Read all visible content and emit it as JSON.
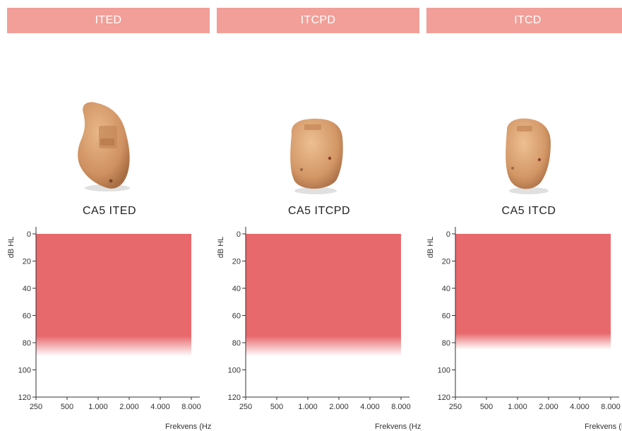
{
  "colors": {
    "header_bg": "#f19f98",
    "fit_range": "#e8696c",
    "device_skin": "#d9a070",
    "axis": "#333333"
  },
  "columns": [
    {
      "header": "ITED",
      "model": "CA5 ITED",
      "device_image": "ited-hearing-aid-shell"
    },
    {
      "header": "ITCPD",
      "model": "CA5 ITCPD",
      "device_image": "itcpd-hearing-aid-shell"
    },
    {
      "header": "ITCD",
      "model": "CA5 ITCD",
      "device_image": "itcd-hearing-aid-shell"
    }
  ],
  "chart_data": [
    {
      "type": "area",
      "xlabel": "Frekvens (Hz)",
      "ylabel": "dB HL",
      "x_tick_labels": [
        "250",
        "500",
        "1.000",
        "2.000",
        "4.000",
        "8.000"
      ],
      "y_ticks": [
        0,
        20,
        40,
        60,
        80,
        100,
        120
      ],
      "ylim": [
        0,
        120
      ],
      "y_inverted": true,
      "x_scale": "log",
      "fit_range": {
        "x_from": "250",
        "x_to": "8.000",
        "db_top": 0,
        "db_solid_to": 75,
        "db_fade_to": 90
      }
    },
    {
      "type": "area",
      "xlabel": "Frekvens (Hz)",
      "ylabel": "dB HL",
      "x_tick_labels": [
        "250",
        "500",
        "1.000",
        "2.000",
        "4.000",
        "8.000"
      ],
      "y_ticks": [
        0,
        20,
        40,
        60,
        80,
        100,
        120
      ],
      "ylim": [
        0,
        120
      ],
      "y_inverted": true,
      "x_scale": "log",
      "fit_range": {
        "x_from": "250",
        "x_to": "8.000",
        "db_top": 0,
        "db_solid_to": 75,
        "db_fade_to": 90
      }
    },
    {
      "type": "area",
      "xlabel": "Frekvens (Hz)",
      "ylabel": "dB HL",
      "x_tick_labels": [
        "250",
        "500",
        "1.000",
        "2.000",
        "4.000",
        "8.000"
      ],
      "y_ticks": [
        0,
        20,
        40,
        60,
        80,
        100,
        120
      ],
      "ylim": [
        0,
        120
      ],
      "y_inverted": true,
      "x_scale": "log",
      "fit_range": {
        "x_from": "250",
        "x_to": "8.000",
        "db_top": 0,
        "db_solid_to": 73,
        "db_fade_to": 85
      }
    }
  ]
}
